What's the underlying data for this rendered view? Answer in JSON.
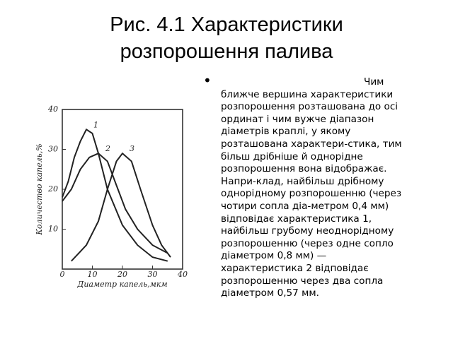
{
  "title": [
    "Рис. 4.1 Характеристики",
    "розпорошення палива"
  ],
  "text": [
    "Чим",
    "ближче вершина характеристики",
    "розпорошення розташована до осі",
    "ординат і чим вужче діапазон",
    "діаметрів краплі, у якому",
    "розташована характери-стика, тим",
    "більш дрібніше й однорідне",
    "розпорошення вона відображає.",
    "Напри-клад, найбільш дрібному",
    "однорідному розпорошенню (через",
    "чотири сопла діа-метром 0,4 мм)",
    "відповідає характеристика 1,",
    "найбільш грубому неоднорідному",
    "розпорошенню (через одне сопло",
    "діаметром 0,8 мм) —",
    "характеристика 2 відповідає",
    "розпорошенню через два сопла",
    "діаметром 0,57 мм."
  ],
  "chart_data": {
    "type": "line",
    "x_label": "Диаметр капель,мкм",
    "y_label": "Количество капель,%",
    "xlim": [
      0,
      40
    ],
    "ylim": [
      0,
      40
    ],
    "xticks": [
      0,
      10,
      20,
      30,
      40
    ],
    "yticks": [
      10,
      20,
      30,
      40
    ],
    "color": "#222",
    "series": [
      {
        "name": "1",
        "x": [
          0,
          2,
          4,
          6,
          8,
          10,
          12,
          15,
          20,
          25,
          30,
          35
        ],
        "values": [
          18,
          22,
          28,
          32,
          35,
          34,
          29,
          20,
          11,
          6,
          3,
          2
        ]
      },
      {
        "name": "2",
        "x": [
          0,
          3,
          6,
          9,
          12,
          15,
          18,
          21,
          25,
          30,
          35
        ],
        "values": [
          17,
          20,
          25,
          28,
          29,
          27,
          21,
          15,
          10,
          6,
          4
        ]
      },
      {
        "name": "3",
        "x": [
          3,
          8,
          12,
          15,
          18,
          20,
          23,
          26,
          30,
          33,
          36
        ],
        "values": [
          2,
          6,
          12,
          20,
          27,
          29,
          27,
          20,
          11,
          6,
          3
        ]
      }
    ]
  }
}
